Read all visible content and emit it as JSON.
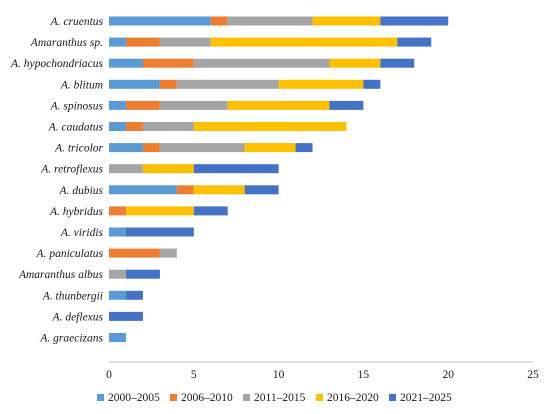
{
  "chart_data": {
    "type": "bar",
    "orientation": "horizontal",
    "stacked": true,
    "categories": [
      "A. cruentus",
      "Amaranthus sp.",
      "A. hypochondriacus",
      "A. blitum",
      "A. spinosus",
      "A. caudatus",
      "A. tricolor",
      "A. retroflexus",
      "A. dubius",
      "A. hybridus",
      "A. viridis",
      "A. paniculatus",
      "Amaranthus albus",
      "A. thunbergii",
      "A. deflexus",
      "A. graecizans"
    ],
    "series": [
      {
        "name": "2000–2005",
        "color": "#5B9BD5",
        "values": [
          6,
          1,
          2,
          3,
          1,
          1,
          2,
          0,
          4,
          0,
          1,
          0,
          0,
          1,
          0,
          1
        ]
      },
      {
        "name": "2006–2010",
        "color": "#ED7D31",
        "values": [
          1,
          2,
          3,
          1,
          2,
          1,
          1,
          0,
          1,
          1,
          0,
          3,
          0,
          0,
          0,
          0
        ]
      },
      {
        "name": "2011–2015",
        "color": "#A5A5A5",
        "values": [
          5,
          3,
          8,
          6,
          4,
          3,
          5,
          2,
          0,
          0,
          0,
          1,
          1,
          0,
          0,
          0
        ]
      },
      {
        "name": "2016–2020",
        "color": "#FFC000",
        "values": [
          4,
          11,
          3,
          5,
          6,
          9,
          3,
          3,
          3,
          4,
          0,
          0,
          0,
          0,
          0,
          0
        ]
      },
      {
        "name": "2021–2025",
        "color": "#4472C4",
        "values": [
          4,
          2,
          2,
          1,
          2,
          0,
          1,
          5,
          2,
          2,
          4,
          0,
          2,
          1,
          2,
          0
        ]
      }
    ],
    "xlim": [
      0,
      25
    ],
    "xticks": [
      0,
      5,
      10,
      15,
      20,
      25
    ],
    "grid": false,
    "legend_position": "bottom"
  }
}
